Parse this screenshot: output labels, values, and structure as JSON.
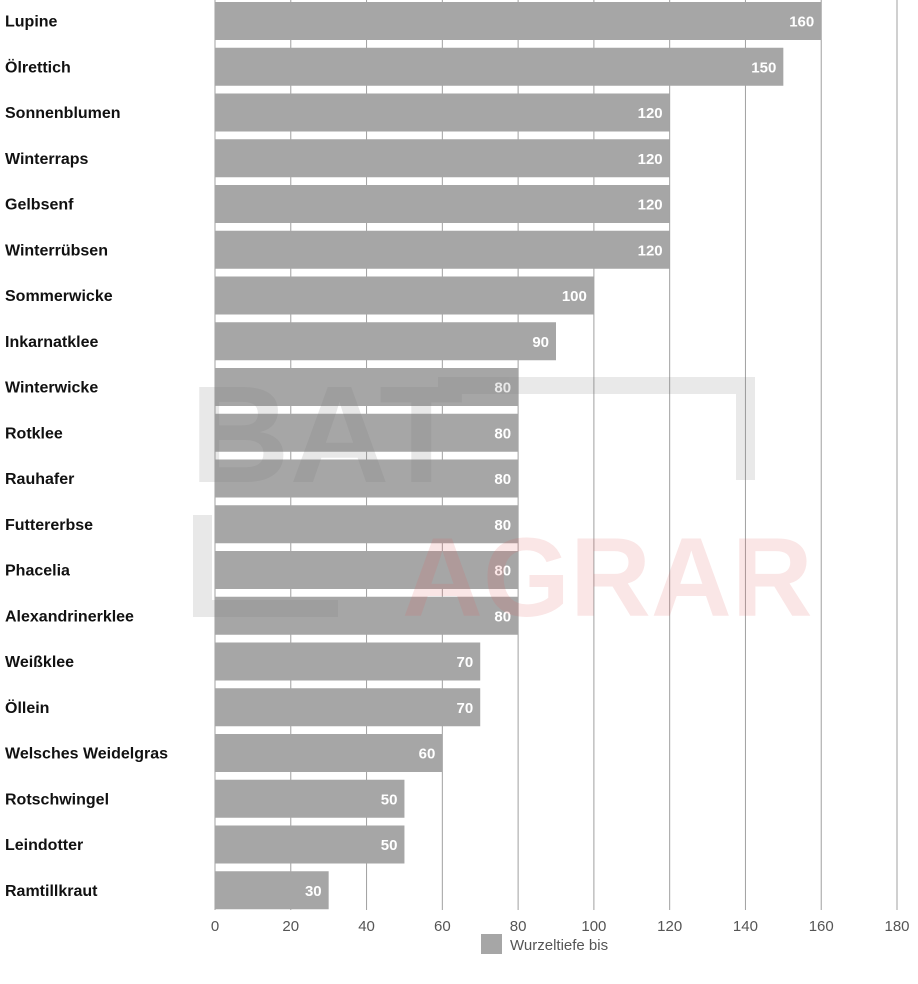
{
  "chart_data": {
    "type": "bar",
    "orientation": "horizontal",
    "categories": [
      "Lupine",
      "Ölrettich",
      "Sonnenblumen",
      "Winterraps",
      "Gelbsenf",
      "Winterrübsen",
      "Sommerwicke",
      "Inkarnatklee",
      "Winterwicke",
      "Rotklee",
      "Rauhafer",
      "Futtererbse",
      "Phacelia",
      "Alexandrinerklee",
      "Weißklee",
      "Öllein",
      "Welsches Weidelgras",
      "Rotschwingel",
      "Leindotter",
      "Ramtillkraut"
    ],
    "series": [
      {
        "name": "Wurzeltiefe bis",
        "values": [
          160,
          150,
          120,
          120,
          120,
          120,
          100,
          90,
          80,
          80,
          80,
          80,
          80,
          80,
          70,
          70,
          60,
          50,
          50,
          30
        ],
        "color": "#a6a6a6"
      }
    ],
    "xlim": [
      0,
      180
    ],
    "xticks": [
      0,
      20,
      40,
      60,
      80,
      100,
      120,
      140,
      160,
      180
    ],
    "grid": "vertical",
    "data_labels": true,
    "legend_position": "bottom-center",
    "title": "",
    "xlabel": "",
    "ylabel": "",
    "colors": {
      "bar": "#a6a6a6",
      "grid": "#a0a0a0",
      "value_label": "#ffffff",
      "category_label": "#111111",
      "tick_label": "#555555"
    }
  },
  "watermark": {
    "line1": "BAT",
    "line2": "AGRAR",
    "color1": "#7a7a7a",
    "color2": "#e05a5a"
  }
}
